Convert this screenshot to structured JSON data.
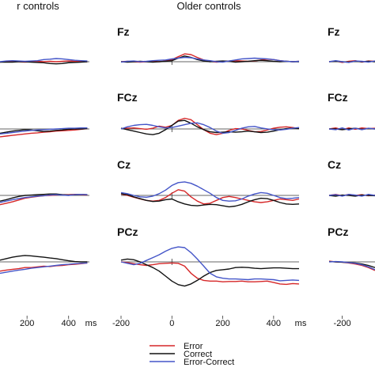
{
  "figure": {
    "group_titles": [
      "r controls",
      "Older controls"
    ],
    "x_axis_unit": "ms"
  },
  "legend": {
    "entries": [
      {
        "label": "Error",
        "color": "#d62728"
      },
      {
        "label": "Correct",
        "color": "#111111"
      },
      {
        "label": "Error-Correct",
        "color": "#4455c8"
      }
    ]
  },
  "chart_data": [
    {
      "type": "line",
      "title": "r controls",
      "xlabel": "ms",
      "x_ticks": [
        200,
        400
      ],
      "xlim": [
        70,
        500
      ],
      "channels": [
        "",
        "",
        "",
        ""
      ],
      "x": [
        70,
        100,
        130,
        160,
        190,
        220,
        250,
        280,
        310,
        340,
        370,
        400,
        430,
        460,
        490
      ],
      "series": [
        {
          "name": "Error",
          "color": "#d62728",
          "values": [
            [
              -0.1,
              0.1,
              0.1,
              0.0,
              -0.1,
              0.0,
              0.1,
              0.0,
              0.1,
              0.0,
              0.1,
              0.2,
              0.1,
              0.1,
              0.0
            ],
            [
              -2.2,
              -2.0,
              -1.8,
              -1.6,
              -1.4,
              -1.2,
              -1.1,
              -0.9,
              -0.8,
              -0.6,
              -0.5,
              -0.4,
              -0.3,
              -0.1,
              0.1
            ],
            [
              -2.6,
              -2.2,
              -1.8,
              -1.3,
              -0.8,
              -0.5,
              -0.3,
              -0.1,
              0.0,
              0.1,
              0.2,
              0.2,
              0.3,
              0.2,
              0.1
            ],
            [
              -2.6,
              -2.3,
              -2.1,
              -1.9,
              -1.6,
              -1.6,
              -1.4,
              -1.2,
              -1.3,
              -1.1,
              -1.0,
              -0.8,
              -0.7,
              -0.5,
              -0.3
            ]
          ]
        },
        {
          "name": "Correct",
          "color": "#111111",
          "values": [
            [
              -0.1,
              -0.1,
              -0.1,
              0.0,
              0.0,
              -0.1,
              -0.2,
              -0.3,
              -0.5,
              -0.6,
              -0.5,
              -0.3,
              -0.2,
              -0.1,
              0.0
            ],
            [
              -1.2,
              -0.9,
              -0.6,
              -0.4,
              -0.2,
              -0.3,
              -0.5,
              -0.7,
              -0.6,
              -0.4,
              -0.3,
              -0.1,
              0.0,
              0.0,
              0.1
            ],
            [
              -1.6,
              -1.2,
              -0.7,
              -0.3,
              0.0,
              0.1,
              0.2,
              0.3,
              0.4,
              0.4,
              0.2,
              0.1,
              0.2,
              0.3,
              0.2
            ],
            [
              0.5,
              0.9,
              1.3,
              1.6,
              1.8,
              1.7,
              1.5,
              1.3,
              1.1,
              0.9,
              0.6,
              0.3,
              0.1,
              0.0,
              0.0
            ]
          ]
        },
        {
          "name": "Error-Correct",
          "color": "#4455c8",
          "values": [
            [
              0.0,
              0.2,
              0.3,
              0.2,
              0.1,
              0.2,
              0.3,
              0.6,
              0.7,
              0.9,
              0.8,
              0.6,
              0.4,
              0.3,
              0.2
            ],
            [
              -1.4,
              -1.2,
              -1.0,
              -0.8,
              -0.6,
              -0.4,
              -0.3,
              -0.2,
              -0.1,
              0.0,
              0.1,
              0.2,
              0.2,
              0.3,
              0.3
            ],
            [
              -2.0,
              -1.6,
              -1.2,
              -0.9,
              -0.6,
              -0.4,
              -0.2,
              -0.1,
              0.1,
              0.2,
              0.1,
              0.0,
              0.2,
              0.3,
              0.2
            ],
            [
              -3.2,
              -2.9,
              -2.6,
              -2.3,
              -2.1,
              -1.8,
              -1.6,
              -1.4,
              -1.2,
              -1.0,
              -0.8,
              -0.7,
              -0.5,
              -0.4,
              -0.3
            ]
          ]
        }
      ]
    },
    {
      "type": "line",
      "title": "Older controls",
      "xlabel": "ms",
      "x_ticks": [
        -200,
        0,
        200,
        400
      ],
      "xlim": [
        -200,
        500
      ],
      "channels": [
        "Fz",
        "FCz",
        "Cz",
        "PCz"
      ],
      "x": [
        -200,
        -175,
        -150,
        -125,
        -100,
        -75,
        -50,
        -25,
        0,
        25,
        50,
        75,
        100,
        125,
        150,
        175,
        200,
        225,
        250,
        275,
        300,
        325,
        350,
        375,
        400,
        425,
        450,
        475,
        500
      ],
      "series": [
        {
          "name": "Error",
          "color": "#d62728",
          "values": [
            [
              0.0,
              0.1,
              0.0,
              -0.1,
              0.0,
              0.1,
              0.0,
              0.2,
              0.6,
              1.4,
              2.2,
              2.0,
              1.2,
              0.5,
              0.1,
              -0.1,
              0.0,
              0.2,
              0.3,
              0.2,
              0.1,
              0.2,
              0.5,
              0.7,
              0.6,
              0.3,
              0.1,
              0.0,
              0.1
            ],
            [
              0.1,
              0.2,
              0.3,
              0.1,
              -0.1,
              0.2,
              0.8,
              0.5,
              1.0,
              2.4,
              3.0,
              2.6,
              1.2,
              -0.2,
              -1.2,
              -1.6,
              -1.2,
              -0.4,
              0.1,
              0.0,
              -0.4,
              -0.8,
              -0.7,
              -0.3,
              0.2,
              0.5,
              0.6,
              0.4,
              0.1
            ],
            [
              0.4,
              0.0,
              -0.5,
              -1.0,
              -1.4,
              -1.6,
              -1.4,
              -0.6,
              0.6,
              1.6,
              1.2,
              -0.4,
              -1.6,
              -2.4,
              -2.2,
              -1.4,
              -0.6,
              -0.3,
              -0.6,
              -1.0,
              -1.4,
              -1.8,
              -2.0,
              -1.8,
              -1.4,
              -1.0,
              -1.2,
              -1.4,
              -1.0
            ],
            [
              0.0,
              -0.2,
              -0.5,
              -0.8,
              -1.0,
              -0.8,
              -0.5,
              -0.4,
              -0.3,
              -0.4,
              -1.2,
              -3.2,
              -4.6,
              -5.2,
              -5.4,
              -5.4,
              -5.6,
              -5.5,
              -5.5,
              -5.4,
              -5.6,
              -5.6,
              -5.5,
              -5.4,
              -5.8,
              -6.2,
              -6.3,
              -6.1,
              -6.2
            ]
          ]
        },
        {
          "name": "Correct",
          "color": "#111111",
          "values": [
            [
              0.0,
              -0.1,
              0.0,
              0.1,
              0.0,
              -0.1,
              0.0,
              0.1,
              0.3,
              1.0,
              1.6,
              1.2,
              0.6,
              0.2,
              0.0,
              0.1,
              0.2,
              0.1,
              -0.1,
              0.0,
              0.1,
              0.3,
              0.4,
              0.3,
              0.1,
              0.0,
              0.1,
              0.0,
              0.0
            ],
            [
              0.2,
              -0.2,
              -0.6,
              -1.0,
              -1.4,
              -1.6,
              -1.2,
              -0.2,
              1.0,
              2.2,
              2.4,
              1.6,
              0.6,
              -0.2,
              -0.8,
              -1.0,
              -0.9,
              -0.8,
              -0.9,
              -0.8,
              -0.6,
              -0.8,
              -1.0,
              -0.9,
              -0.6,
              -0.2,
              0.1,
              0.2,
              0.1
            ],
            [
              0.5,
              0.2,
              -0.4,
              -0.9,
              -1.4,
              -1.7,
              -1.6,
              -1.2,
              -1.0,
              -1.8,
              -2.4,
              -2.8,
              -2.9,
              -2.7,
              -2.5,
              -2.6,
              -2.9,
              -3.2,
              -3.0,
              -2.5,
              -1.8,
              -1.2,
              -0.8,
              -0.9,
              -1.4,
              -2.0,
              -2.4,
              -2.5,
              -2.4
            ],
            [
              0.5,
              0.8,
              0.6,
              0.0,
              -0.8,
              -1.6,
              -2.6,
              -4.0,
              -5.4,
              -6.4,
              -6.8,
              -6.2,
              -5.2,
              -4.0,
              -3.0,
              -2.4,
              -2.2,
              -2.0,
              -1.6,
              -1.5,
              -1.6,
              -1.8,
              -1.9,
              -1.8,
              -1.7,
              -1.7,
              -1.8,
              -1.9,
              -1.9
            ]
          ]
        },
        {
          "name": "Error-Correct",
          "color": "#4455c8",
          "values": [
            [
              -0.1,
              0.1,
              0.2,
              0.0,
              0.1,
              0.3,
              0.4,
              0.5,
              0.8,
              1.0,
              1.2,
              1.1,
              0.8,
              0.5,
              0.3,
              0.0,
              -0.1,
              0.2,
              0.5,
              0.8,
              0.9,
              1.0,
              0.9,
              0.8,
              0.6,
              0.3,
              0.1,
              0.0,
              0.1
            ],
            [
              0.0,
              0.6,
              1.0,
              1.2,
              1.3,
              1.0,
              0.6,
              0.3,
              0.4,
              0.8,
              1.2,
              1.6,
              1.7,
              1.2,
              0.4,
              -0.6,
              -1.2,
              -1.0,
              -0.4,
              0.2,
              0.6,
              0.7,
              0.3,
              0.0,
              -0.2,
              -0.3,
              -0.1,
              0.2,
              0.4
            ],
            [
              0.8,
              0.5,
              0.0,
              -0.4,
              -0.5,
              -0.2,
              0.5,
              1.5,
              2.8,
              3.6,
              3.8,
              3.4,
              2.6,
              1.6,
              0.6,
              -0.6,
              -1.4,
              -1.6,
              -1.5,
              -1.0,
              -0.2,
              0.4,
              0.8,
              0.6,
              0.0,
              -0.6,
              -0.9,
              -0.8,
              -0.6
            ],
            [
              0.0,
              -0.4,
              -0.8,
              -0.4,
              0.4,
              1.2,
              2.0,
              3.0,
              3.8,
              4.2,
              4.0,
              2.6,
              0.8,
              -1.2,
              -3.2,
              -4.2,
              -4.6,
              -4.8,
              -4.8,
              -4.9,
              -5.0,
              -4.8,
              -4.8,
              -4.9,
              -5.0,
              -5.3,
              -5.2,
              -5.1,
              -5.2
            ]
          ]
        }
      ]
    },
    {
      "type": "line",
      "title": "",
      "xlabel": "",
      "x_ticks": [
        -200
      ],
      "xlim": [
        -240,
        -100
      ],
      "channels": [
        "Fz",
        "FCz",
        "Cz",
        "PCz"
      ],
      "x": [
        -240,
        -220,
        -200,
        -180,
        -160,
        -140,
        -120,
        -100
      ],
      "series": [
        {
          "name": "Error",
          "color": "#d62728",
          "values": [
            [
              0.0,
              0.2,
              -0.2,
              0.1,
              0.3,
              -0.1,
              0.2,
              0.1
            ],
            [
              0.0,
              0.3,
              -0.2,
              0.3,
              -0.1,
              0.3,
              0.1,
              0.2
            ],
            [
              0.0,
              0.3,
              -0.1,
              0.3,
              0.0,
              0.2,
              -0.1,
              0.1
            ],
            [
              0.2,
              0.0,
              -0.1,
              -0.3,
              -0.6,
              -1.0,
              -1.6,
              -2.4
            ]
          ]
        },
        {
          "name": "Correct",
          "color": "#111111",
          "values": [
            [
              0.0,
              0.1,
              0.0,
              -0.1,
              0.1,
              0.0,
              0.1,
              0.0
            ],
            [
              0.0,
              0.0,
              -0.2,
              0.0,
              0.2,
              -0.1,
              0.1,
              0.0
            ],
            [
              0.0,
              -0.2,
              0.1,
              0.0,
              -0.2,
              0.1,
              0.0,
              -0.1
            ],
            [
              0.1,
              0.0,
              -0.1,
              -0.2,
              -0.3,
              -0.6,
              -1.0,
              -1.6
            ]
          ]
        },
        {
          "name": "Error-Correct",
          "color": "#4455c8",
          "values": [
            [
              0.0,
              0.3,
              0.0,
              -0.2,
              0.2,
              0.1,
              -0.1,
              0.2
            ],
            [
              0.0,
              -0.2,
              0.3,
              -0.3,
              0.2,
              -0.2,
              0.2,
              0.0
            ],
            [
              0.0,
              0.2,
              -0.2,
              0.3,
              0.1,
              -0.2,
              0.3,
              0.0
            ],
            [
              0.0,
              0.1,
              0.0,
              -0.2,
              -0.4,
              -0.8,
              -1.4,
              -2.2
            ]
          ]
        }
      ]
    }
  ]
}
